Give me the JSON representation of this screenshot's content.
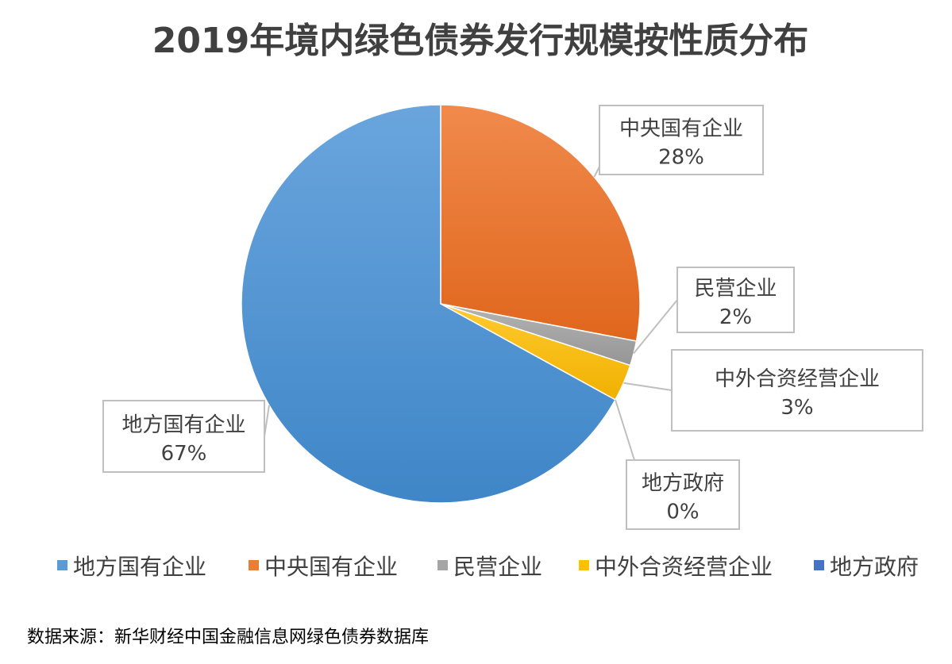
{
  "chart_data": {
    "type": "pie",
    "title": "2019年境内绿色债券发行规模按性质分布",
    "categories": [
      "地方国有企业",
      "中央国有企业",
      "民营企业",
      "中外合资经营企业",
      "地方政府"
    ],
    "values": [
      67,
      28,
      2,
      3,
      0
    ],
    "labels": [
      "67%",
      "28%",
      "2%",
      "3%",
      "0%"
    ],
    "colors": [
      "#5b9bd5",
      "#ed7d31",
      "#a5a5a5",
      "#ffc000",
      "#4472c4"
    ],
    "legend_position": "bottom",
    "source": "数据来源：新华财经中国金融信息网绿色债券数据库"
  }
}
